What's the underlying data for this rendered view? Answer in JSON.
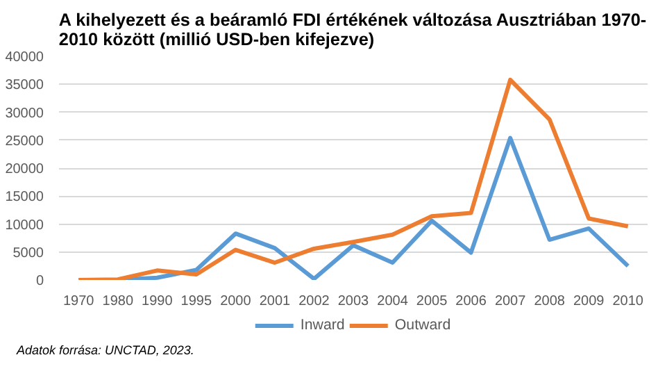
{
  "chart_data": {
    "type": "line",
    "title": "A kihelyezett és a beáramló FDI értékének változása Ausztriában 1970-\n2010 között (millió USD-ben kifejezve)",
    "categories": [
      "1970",
      "1980",
      "1990",
      "1995",
      "2000",
      "2001",
      "2002",
      "2003",
      "2004",
      "2005",
      "2006",
      "2007",
      "2008",
      "2009",
      "2010"
    ],
    "series": [
      {
        "name": "Inward",
        "color": "#5b9bd5",
        "values": [
          0,
          0,
          400,
          1800,
          8300,
          5700,
          200,
          6200,
          3100,
          10600,
          4900,
          25400,
          7200,
          9200,
          2500
        ]
      },
      {
        "name": "Outward",
        "color": "#ed7d31",
        "values": [
          0,
          100,
          1700,
          1000,
          5400,
          3100,
          5600,
          6800,
          8100,
          11400,
          12000,
          35800,
          28700,
          11000,
          9600
        ]
      }
    ],
    "ylim": [
      0,
      40000
    ],
    "yticks": [
      0,
      5000,
      10000,
      15000,
      20000,
      25000,
      30000,
      35000,
      40000
    ],
    "grid": "y",
    "legend": "bottom",
    "marker": "none",
    "line_style": "solid",
    "annotations": [
      "Adatok forrása: UNCTAD, 2023."
    ]
  }
}
